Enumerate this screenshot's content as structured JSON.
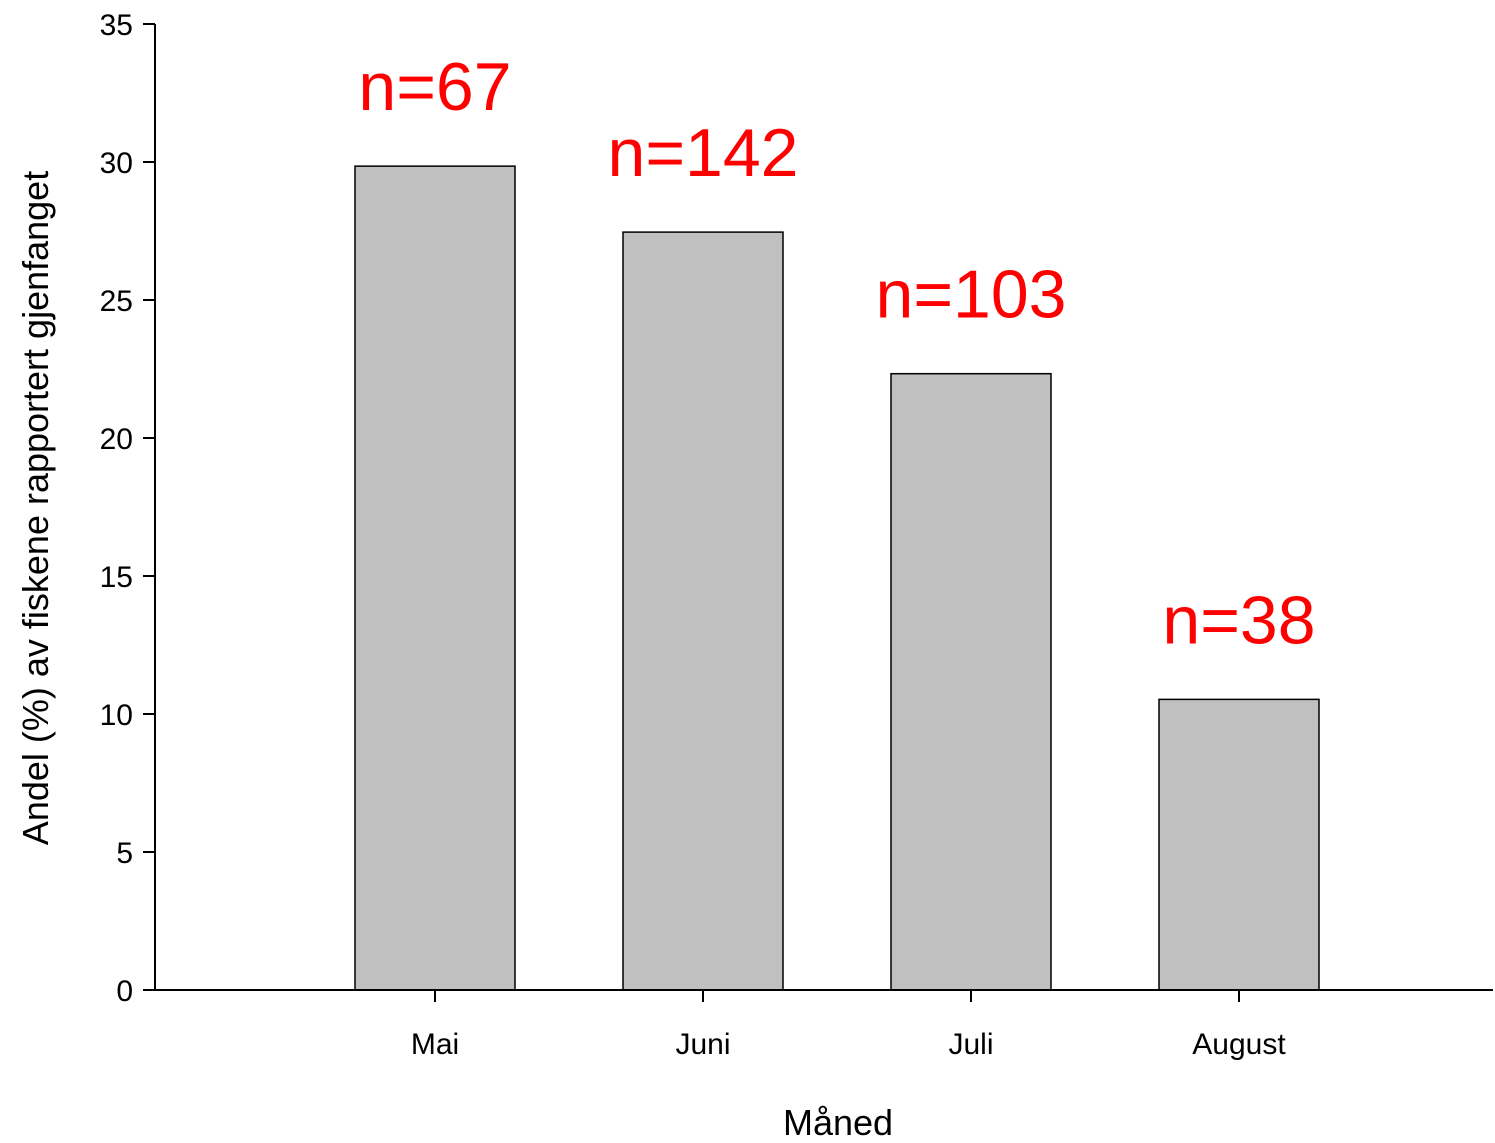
{
  "chart_data": {
    "type": "bar",
    "title": "",
    "xlabel": "Måned",
    "ylabel": "Andel (%) av fiskene rapportert gjenfanget",
    "categories": [
      "Mai",
      "Juni",
      "Juli",
      "August"
    ],
    "values": [
      29.85,
      27.46,
      22.33,
      10.53
    ],
    "annotations": [
      "n=67",
      "n=142",
      "n=103",
      "n=38"
    ],
    "ylim": [
      0,
      35
    ],
    "yticks": [
      0,
      5,
      10,
      15,
      20,
      25,
      30,
      35
    ],
    "grid": false,
    "legend": "none",
    "colors": {
      "bar_fill": "#c0c0c0",
      "bar_stroke": "#000000",
      "annotation": "#ff0000",
      "axis": "#000000"
    }
  }
}
